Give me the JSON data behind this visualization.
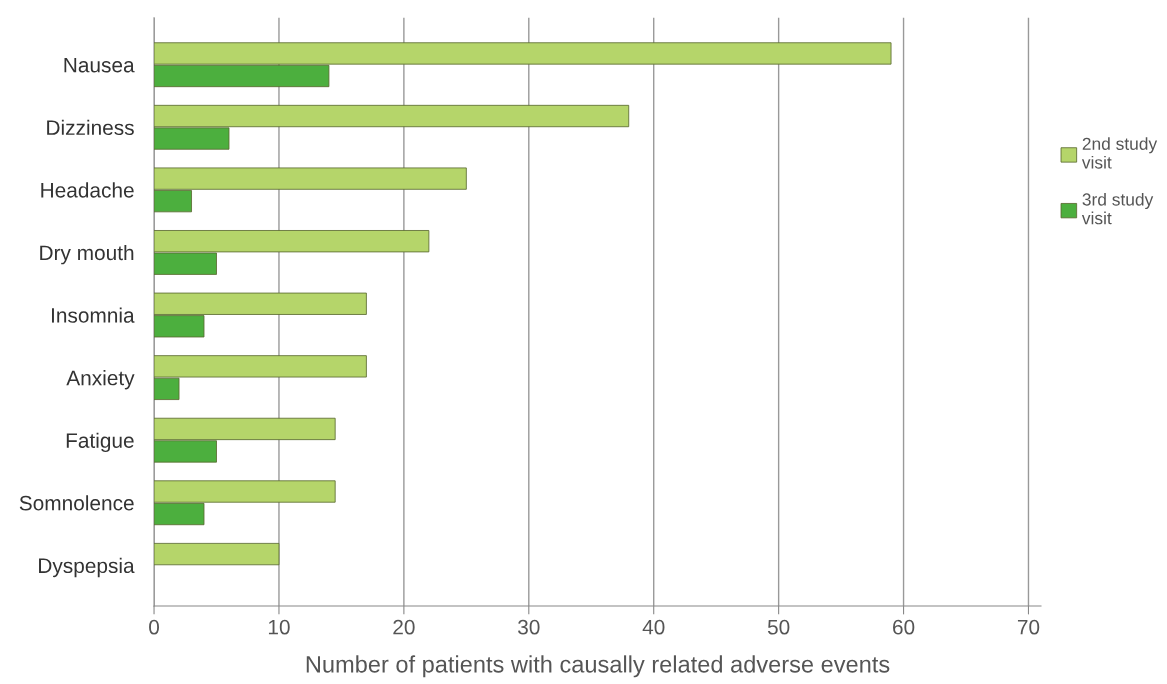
{
  "chart_data": {
    "type": "bar",
    "orientation": "horizontal",
    "xlabel": "Number of patients with causally related adverse events",
    "categories": [
      "Nausea",
      "Dizziness",
      "Headache",
      "Dry mouth",
      "Insomnia",
      "Anxiety",
      "Fatigue",
      "Somnolence",
      "Dyspepsia"
    ],
    "series": [
      {
        "name": "2nd study visit",
        "color": "#b5d56a",
        "values": [
          59,
          38,
          25,
          22,
          17,
          17,
          14.5,
          14.5,
          10
        ]
      },
      {
        "name": "3rd study visit",
        "color": "#4caf3e",
        "values": [
          14,
          6,
          3,
          5,
          4,
          2,
          5,
          4,
          null
        ]
      }
    ],
    "xlim": [
      0,
      71
    ],
    "xticks": [
      0,
      10,
      20,
      30,
      40,
      50,
      60,
      70
    ],
    "grid": "x",
    "legend": "right"
  }
}
